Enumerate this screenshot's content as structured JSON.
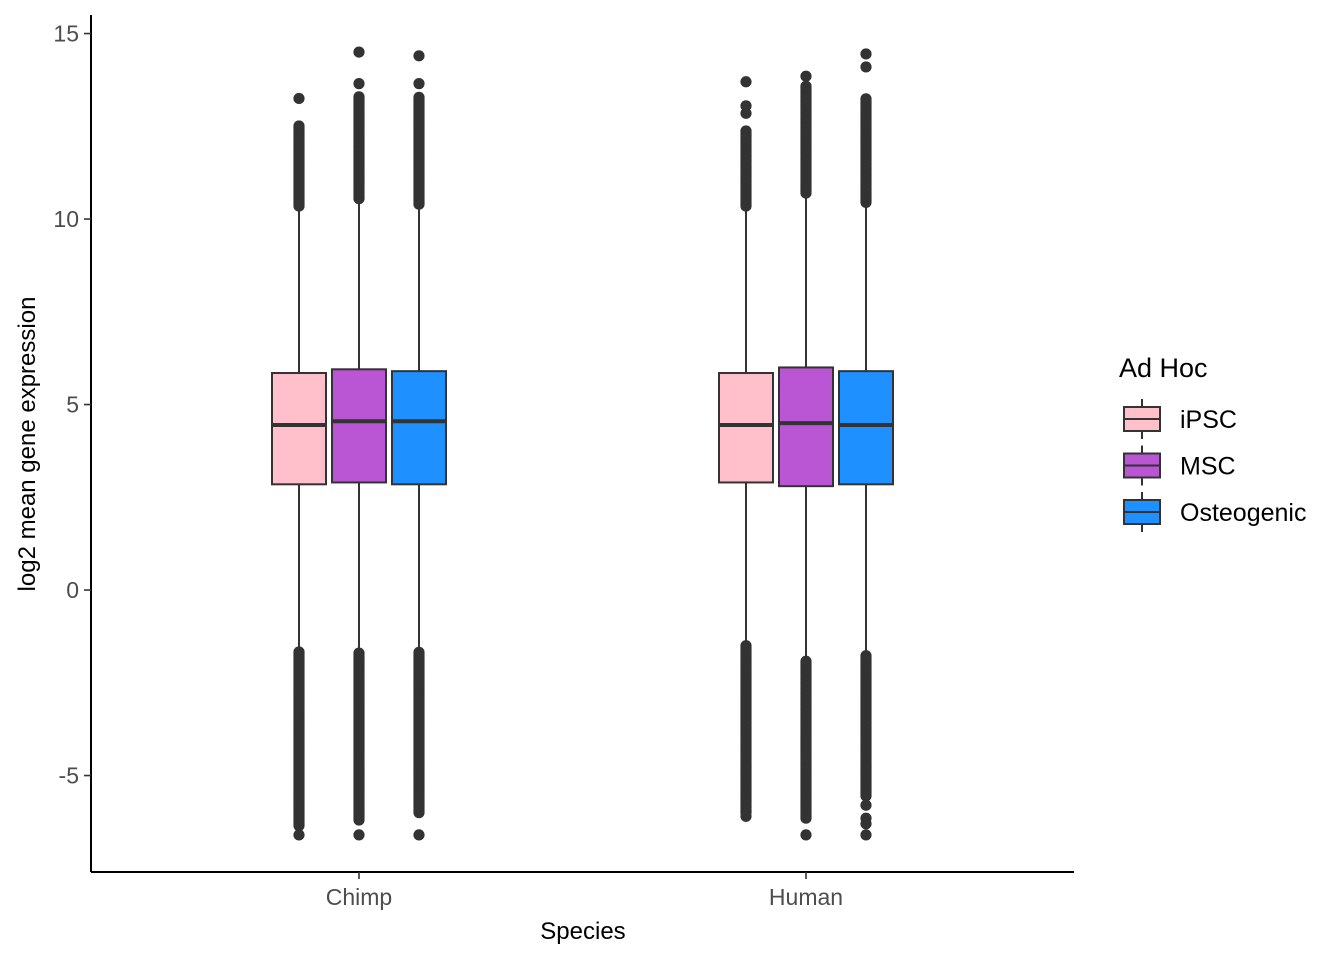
{
  "chart_data": {
    "type": "boxplot",
    "xlabel": "Species",
    "ylabel": "log2 mean gene expression",
    "categories": [
      "Chimp",
      "Human"
    ],
    "ylim": [
      -7.6,
      15.5
    ],
    "yticks": [
      -5,
      0,
      5,
      10,
      15
    ],
    "grid": false,
    "legend": {
      "title": "Ad Hoc",
      "position": "right",
      "entries": [
        "iPSC",
        "MSC",
        "Osteogenic"
      ]
    },
    "series": [
      {
        "name": "iPSC",
        "color": "#FFC0CB",
        "boxes": [
          {
            "category": "Chimp",
            "q1": 2.85,
            "median": 4.45,
            "q3": 5.85,
            "whisker_low": -1.65,
            "whisker_high": 10.35,
            "outliers_high_range": [
              10.35,
              12.55
            ],
            "outliers_high": [
              13.25
            ],
            "outliers_low_range": [
              -6.35,
              -1.65
            ],
            "outliers_low": [
              -6.6
            ]
          },
          {
            "category": "Human",
            "q1": 2.9,
            "median": 4.45,
            "q3": 5.85,
            "whisker_low": -1.5,
            "whisker_high": 10.35,
            "outliers_high_range": [
              10.35,
              12.4
            ],
            "outliers_high": [
              12.85,
              13.05,
              13.7
            ],
            "outliers_low_range": [
              -6.0,
              -1.5
            ],
            "outliers_low": [
              -6.1
            ]
          }
        ]
      },
      {
        "name": "MSC",
        "color": "#BA55D3",
        "boxes": [
          {
            "category": "Chimp",
            "q1": 2.9,
            "median": 4.55,
            "q3": 5.95,
            "whisker_low": -1.7,
            "whisker_high": 10.55,
            "outliers_high_range": [
              10.55,
              13.3
            ],
            "outliers_high": [
              13.65,
              14.5
            ],
            "outliers_low_range": [
              -6.2,
              -1.7
            ],
            "outliers_low": [
              -6.6
            ]
          },
          {
            "category": "Human",
            "q1": 2.8,
            "median": 4.5,
            "q3": 6.0,
            "whisker_low": -1.9,
            "whisker_high": 10.7,
            "outliers_high_range": [
              10.7,
              13.6
            ],
            "outliers_high": [
              13.85
            ],
            "outliers_low_range": [
              -6.15,
              -1.9
            ],
            "outliers_low": [
              -6.6
            ]
          }
        ]
      },
      {
        "name": "Osteogenic",
        "color": "#1E90FF",
        "boxes": [
          {
            "category": "Chimp",
            "q1": 2.85,
            "median": 4.55,
            "q3": 5.9,
            "whisker_low": -1.65,
            "whisker_high": 10.4,
            "outliers_high_range": [
              10.4,
              13.3
            ],
            "outliers_high": [
              13.65,
              14.4
            ],
            "outliers_low_range": [
              -6.0,
              -1.65
            ],
            "outliers_low": [
              -6.6
            ]
          },
          {
            "category": "Human",
            "q1": 2.85,
            "median": 4.45,
            "q3": 5.9,
            "whisker_low": -1.75,
            "whisker_high": 10.45,
            "outliers_high_range": [
              10.45,
              13.25
            ],
            "outliers_high": [
              14.1,
              14.45
            ],
            "outliers_low_range": [
              -5.55,
              -1.75
            ],
            "outliers_low": [
              -5.8,
              -6.15,
              -6.3,
              -6.6
            ]
          }
        ]
      }
    ]
  }
}
